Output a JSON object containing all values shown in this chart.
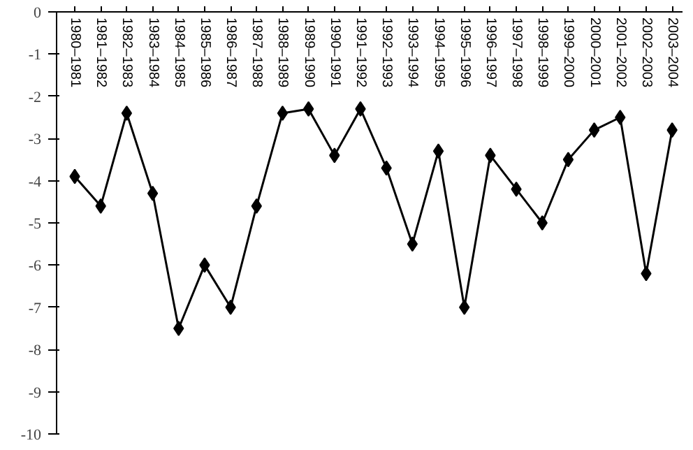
{
  "chart_data": {
    "type": "line",
    "categories": [
      "1980–1981",
      "1981–1982",
      "1982–1983",
      "1983–1984",
      "1984–1985",
      "1985–1986",
      "1986–1987",
      "1987–1988",
      "1988–1989",
      "1989–1990",
      "1990–1991",
      "1991–1992",
      "1992–1993",
      "1993–1994",
      "1994–1995",
      "1995–1996",
      "1996–1997",
      "1997–1998",
      "1998–1999",
      "1999–2000",
      "2000–2001",
      "2001–2002",
      "2002–2003",
      "2003–2004"
    ],
    "series": [
      {
        "color": "#000000",
        "values": [
          -3.9,
          -4.6,
          -2.4,
          -4.3,
          -7.5,
          -6.0,
          -7.0,
          -4.6,
          -2.4,
          -2.3,
          -3.4,
          -2.3,
          -3.7,
          -5.5,
          -3.3,
          -7.0,
          -3.4,
          -4.2,
          -5.0,
          -3.5,
          -2.8,
          -2.5,
          -6.2,
          -2.8
        ]
      }
    ],
    "ylim": [
      -10,
      0
    ],
    "yticks": [
      0,
      -1,
      -2,
      -3,
      -4,
      -5,
      -6,
      -7,
      -8,
      -9,
      -10
    ],
    "grid": false,
    "marker": "diamond",
    "line_style": "solid"
  }
}
